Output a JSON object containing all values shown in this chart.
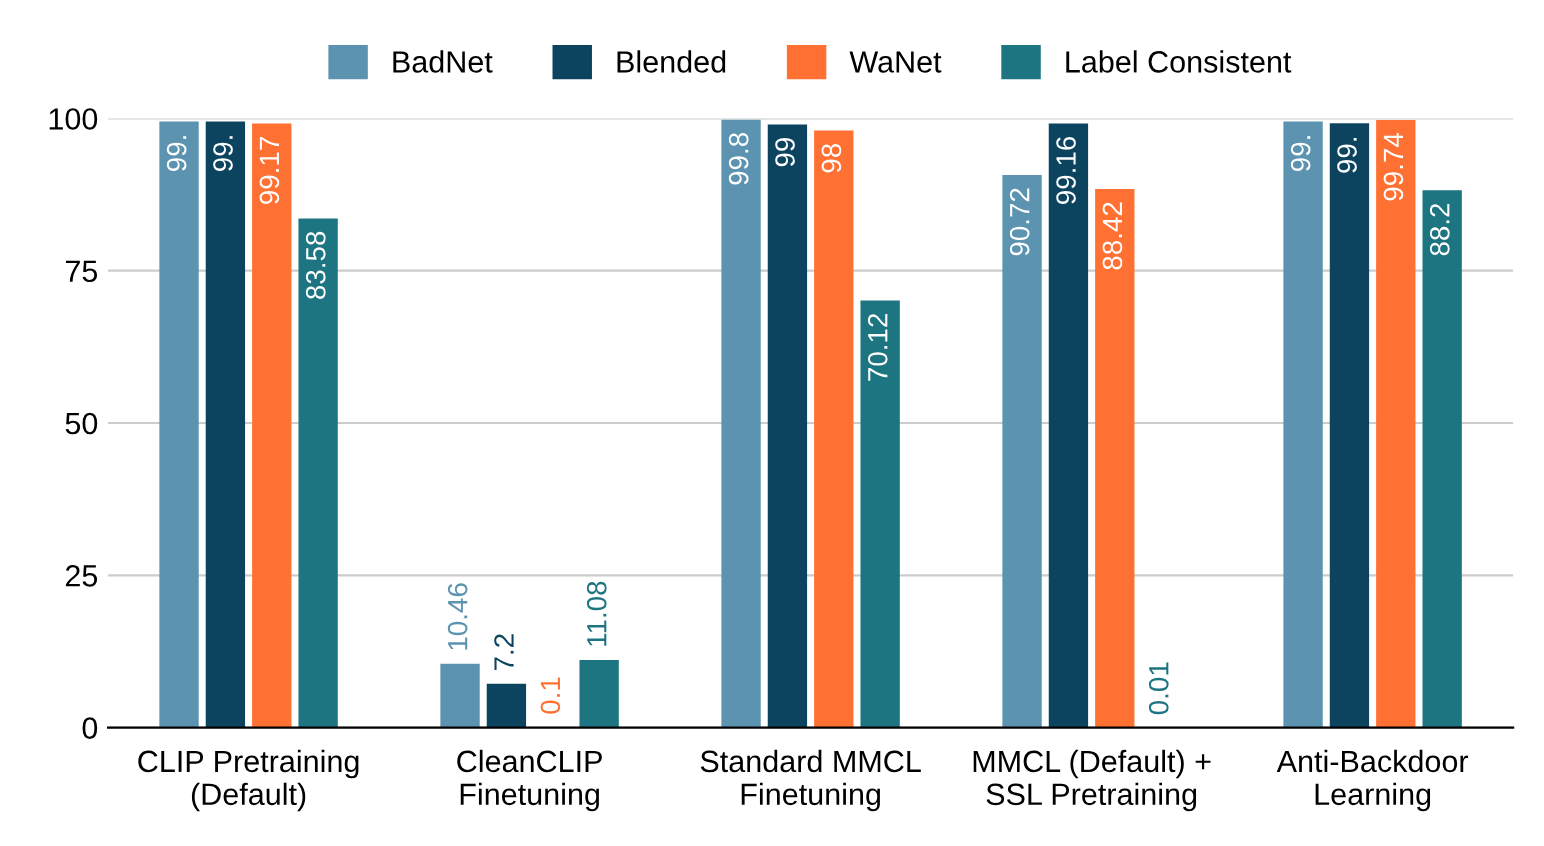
{
  "chart_data": {
    "type": "bar",
    "categories": [
      "CLIP Pretraining\n(Default)",
      "CleanCLIP\nFinetuning",
      "Standard MMCL\nFinetuning",
      "MMCL (Default) +\nSSL Pretraining",
      "Anti-Backdoor\nLearning"
    ],
    "series": [
      {
        "name": "BadNet",
        "color": "#5b93b0",
        "values": [
          99.5,
          10.46,
          99.8,
          90.72,
          99.5
        ],
        "value_labels": [
          "99.",
          "10.46",
          "99.8",
          "90.72",
          "99."
        ]
      },
      {
        "name": "Blended",
        "color": "#0c4460",
        "values": [
          99.5,
          7.2,
          99,
          99.16,
          99.2
        ],
        "value_labels": [
          "99.",
          "7.2",
          "99",
          "99.16",
          "99."
        ]
      },
      {
        "name": "WaNet",
        "color": "#ff7033",
        "values": [
          99.17,
          0.1,
          98,
          88.42,
          99.74
        ],
        "value_labels": [
          "99.17",
          "0.1",
          "98",
          "88.42",
          "99.74"
        ]
      },
      {
        "name": "Label Consistent",
        "color": "#1e7582",
        "values": [
          83.58,
          11.08,
          70.12,
          0.01,
          88.2
        ],
        "value_labels": [
          "83.58",
          "11.08",
          "70.12",
          "0.01",
          "88.2"
        ]
      }
    ],
    "ylim": [
      0,
      100
    ],
    "yticks": [
      0,
      25,
      50,
      75,
      100
    ],
    "grid": "y",
    "legend": "top"
  }
}
